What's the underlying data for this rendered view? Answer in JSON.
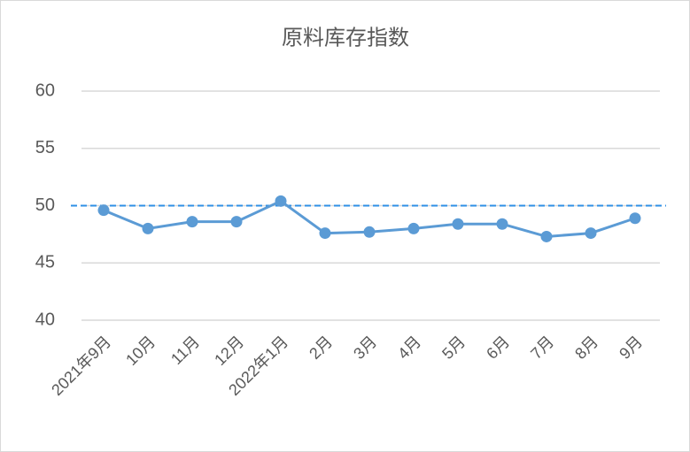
{
  "chart_data": {
    "type": "line",
    "title": "原料库存指数",
    "categories": [
      "2021年9月",
      "10月",
      "11月",
      "12月",
      "2022年1月",
      "2月",
      "3月",
      "4月",
      "5月",
      "6月",
      "7月",
      "8月",
      "9月"
    ],
    "values": [
      49.6,
      48.0,
      48.6,
      48.6,
      50.4,
      47.6,
      47.7,
      48.0,
      48.4,
      48.4,
      47.3,
      47.6,
      48.9
    ],
    "color": "#5b9bd5",
    "reference_line": {
      "value": 50,
      "color": "#2e8fe6"
    },
    "ylim": [
      40,
      60
    ],
    "yticks": [
      40,
      45,
      50,
      55,
      60
    ],
    "grid": true
  }
}
